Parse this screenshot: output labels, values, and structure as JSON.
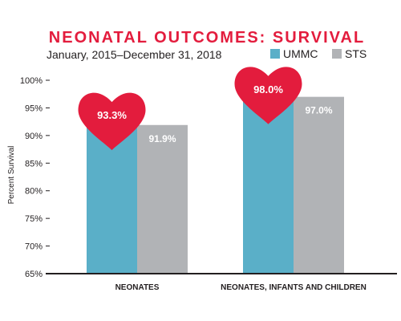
{
  "chart_data": {
    "type": "bar",
    "title": "NEONATAL OUTCOMES: SURVIVAL",
    "subtitle": "January, 2015–December 31, 2018",
    "ylabel": "Percent Survival",
    "xlabel": "",
    "ylim": [
      65,
      100
    ],
    "yticks": [
      100,
      95,
      90,
      85,
      80,
      75,
      70,
      65
    ],
    "ytick_labels": [
      "100%",
      "95%",
      "90%",
      "85%",
      "80%",
      "75%",
      "70%",
      "65%"
    ],
    "categories": [
      "NEONATES",
      "NEONATES, INFANTS AND CHILDREN"
    ],
    "series": [
      {
        "name": "UMMC",
        "values": [
          93.3,
          98.0
        ],
        "labels": [
          "93.3%",
          "98.0%"
        ],
        "color": "#5AAFC8",
        "label_style": "heart"
      },
      {
        "name": "STS",
        "values": [
          91.9,
          97.0
        ],
        "labels": [
          "91.9%",
          "97.0%"
        ],
        "color": "#B1B3B6",
        "label_style": "inside"
      }
    ],
    "legend_position": "top-right",
    "grid": false,
    "colors": {
      "title": "#E31C3D",
      "heart": "#E31C3D",
      "text": "#231F20",
      "axis": "#231F20"
    }
  }
}
